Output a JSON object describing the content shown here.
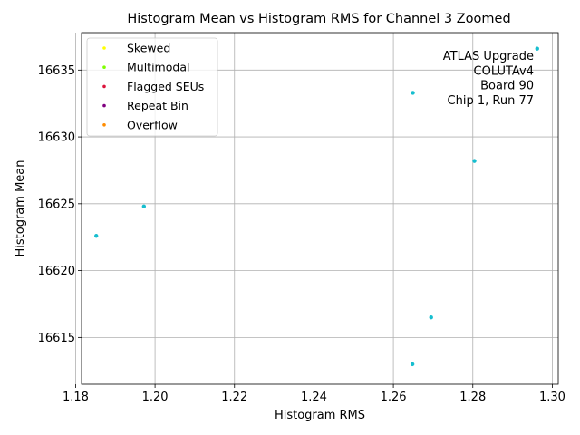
{
  "chart_data": {
    "type": "scatter",
    "title": "Histogram Mean vs Histogram RMS for Channel 3 Zoomed",
    "xlabel": "Histogram RMS",
    "ylabel": "Histogram Mean",
    "xlim": [
      1.1815,
      1.3015
    ],
    "ylim": [
      16611.5,
      16637.8
    ],
    "xticks": [
      "1.18",
      "1.20",
      "1.22",
      "1.24",
      "1.26",
      "1.28",
      "1.30"
    ],
    "xtick_values": [
      1.18,
      1.2,
      1.22,
      1.24,
      1.26,
      1.28,
      1.3
    ],
    "yticks": [
      "16615",
      "16620",
      "16625",
      "16630",
      "16635"
    ],
    "ytick_values": [
      16615,
      16620,
      16625,
      16630,
      16635
    ],
    "grid": true,
    "legend_position": "upper-left",
    "legend": [
      {
        "label": "Skewed",
        "color": "#ffff00"
      },
      {
        "label": "Multimodal",
        "color": "#7fff00"
      },
      {
        "label": "Flagged SEUs",
        "color": "#dc143c"
      },
      {
        "label": "Repeat Bin",
        "color": "#800080"
      },
      {
        "label": "Overflow",
        "color": "#ff8c00"
      }
    ],
    "point_color": "#17becf",
    "points": [
      {
        "x": 1.1852,
        "y": 16622.6
      },
      {
        "x": 1.1972,
        "y": 16624.8
      },
      {
        "x": 1.2649,
        "y": 16633.3
      },
      {
        "x": 1.2648,
        "y": 16613.0
      },
      {
        "x": 1.2695,
        "y": 16616.5
      },
      {
        "x": 1.2804,
        "y": 16628.2
      },
      {
        "x": 1.2962,
        "y": 16636.6
      }
    ],
    "annotation": [
      "ATLAS Upgrade",
      "COLUTAv4",
      "Board 90",
      "Chip 1, Run 77"
    ]
  }
}
